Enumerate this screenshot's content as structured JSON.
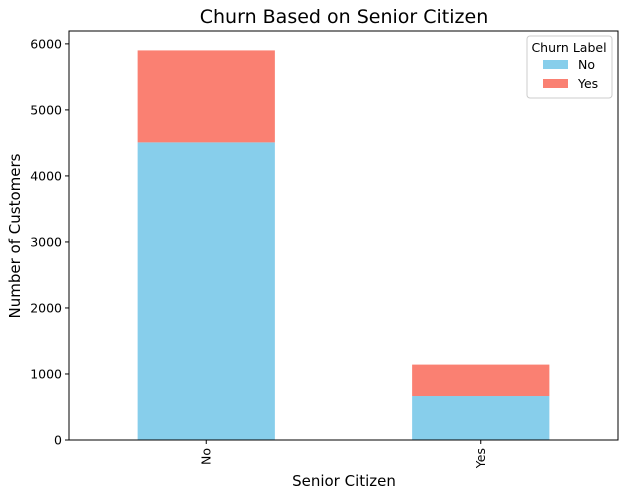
{
  "chart_data": {
    "type": "bar",
    "stacked": true,
    "title": "Churn Based on Senior Citizen",
    "xlabel": "Senior Citizen",
    "ylabel": "Number of Customers",
    "categories": [
      "No",
      "Yes"
    ],
    "series": [
      {
        "name": "No",
        "values": [
          4508,
          666
        ],
        "color": "#87CEEB"
      },
      {
        "name": "Yes",
        "values": [
          1393,
          476
        ],
        "color": "#FA8072"
      }
    ],
    "ylim": [
      0,
      6195
    ],
    "yticks": [
      0,
      1000,
      2000,
      3000,
      4000,
      5000,
      6000
    ],
    "grid": false,
    "legend": {
      "title": "Churn Label",
      "position": "top-right"
    }
  }
}
